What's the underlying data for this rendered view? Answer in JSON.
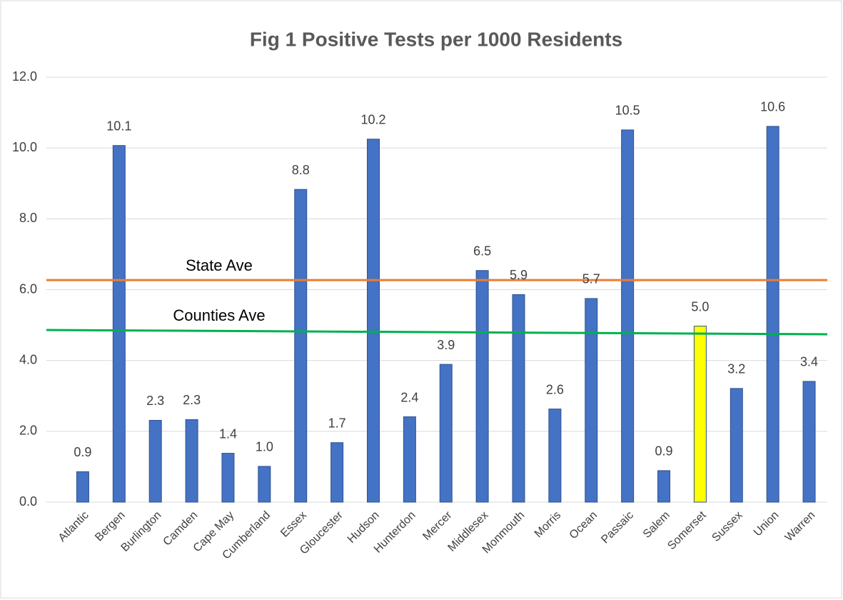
{
  "chart_data": {
    "type": "bar",
    "title": "Fig 1 Positive Tests per 1000 Residents",
    "categories": [
      "Atlantic",
      "Bergen",
      "Burlington",
      "Camden",
      "Cape May",
      "Cumberland",
      "Essex",
      "Gloucester",
      "Hudson",
      "Hunterdon",
      "Mercer",
      "Middlesex",
      "Monmouth",
      "Morris",
      "Ocean",
      "Passaic",
      "Salem",
      "Somerset",
      "Sussex",
      "Union",
      "Warren"
    ],
    "values": [
      0.86,
      10.07,
      2.31,
      2.33,
      1.38,
      1.01,
      8.83,
      1.68,
      10.25,
      2.41,
      3.89,
      6.54,
      5.86,
      2.63,
      5.75,
      10.51,
      0.89,
      4.97,
      3.21,
      10.61,
      3.41
    ],
    "value_labels": [
      "0.9",
      "10.1",
      "2.3",
      "2.3",
      "1.4",
      "1.0",
      "8.8",
      "1.7",
      "10.2",
      "2.4",
      "3.9",
      "6.5",
      "5.9",
      "2.6",
      "5.7",
      "10.5",
      "0.9",
      "5.0",
      "3.2",
      "10.6",
      "3.4"
    ],
    "bar_colors": [
      "#4472c4",
      "#4472c4",
      "#4472c4",
      "#4472c4",
      "#4472c4",
      "#4472c4",
      "#4472c4",
      "#4472c4",
      "#4472c4",
      "#4472c4",
      "#4472c4",
      "#4472c4",
      "#4472c4",
      "#4472c4",
      "#4472c4",
      "#4472c4",
      "#4472c4",
      "#ffff00",
      "#4472c4",
      "#4472c4",
      "#4472c4"
    ],
    "reference_lines": [
      {
        "name": "State Ave",
        "color": "#ed7d31",
        "values": [
          6.27,
          6.27
        ]
      },
      {
        "name": "Counties Ave",
        "color": "#00b050",
        "values": [
          4.86,
          4.74
        ]
      }
    ],
    "ylim": [
      0,
      12
    ],
    "yticks": [
      {
        "value": 0,
        "label": "0.0"
      },
      {
        "value": 2,
        "label": "2.0"
      },
      {
        "value": 4,
        "label": "4.0"
      },
      {
        "value": 6,
        "label": "6.0"
      },
      {
        "value": 8,
        "label": "8.0"
      },
      {
        "value": 10,
        "label": "10.0"
      },
      {
        "value": 12,
        "label": "12.0"
      }
    ],
    "grid": true
  }
}
